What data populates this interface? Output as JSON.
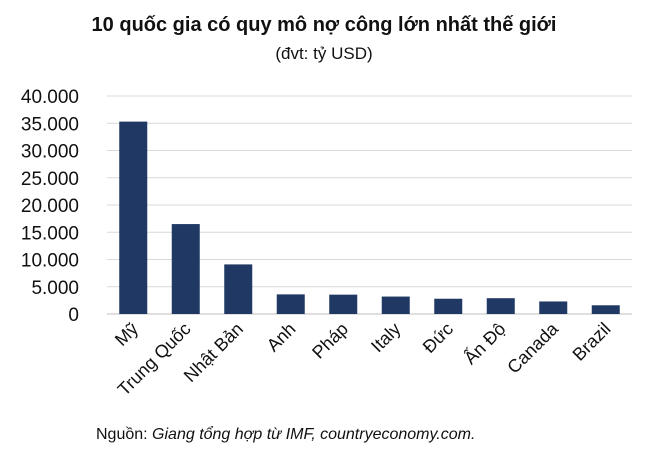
{
  "chart_data": {
    "type": "bar",
    "title": "10 quốc gia có quy mô nợ công lớn nhất thế giới",
    "subtitle": "(đvt: tỷ USD)",
    "categories": [
      "Mỹ",
      "Trung Quốc",
      "Nhật Bản",
      "Anh",
      "Pháp",
      "Italy",
      "Đức",
      "Ấn Độ",
      "Canada",
      "Brazil"
    ],
    "values": [
      35300,
      16500,
      9100,
      3600,
      3550,
      3200,
      2800,
      2900,
      2300,
      1600
    ],
    "ylim": [
      0,
      40000
    ],
    "yticks": [
      "0",
      "5.000",
      "10.000",
      "15.000",
      "20.000",
      "25.000",
      "30.000",
      "35.000",
      "40.000"
    ],
    "ytick_values": [
      0,
      5000,
      10000,
      15000,
      20000,
      25000,
      30000,
      35000,
      40000
    ],
    "grid": true,
    "bar_color": "#1f3864",
    "grid_color": "#d9d9d9"
  },
  "source": {
    "prefix": "Nguồn: ",
    "text": "Giang tổng hợp từ IMF, countryeconomy.com."
  }
}
